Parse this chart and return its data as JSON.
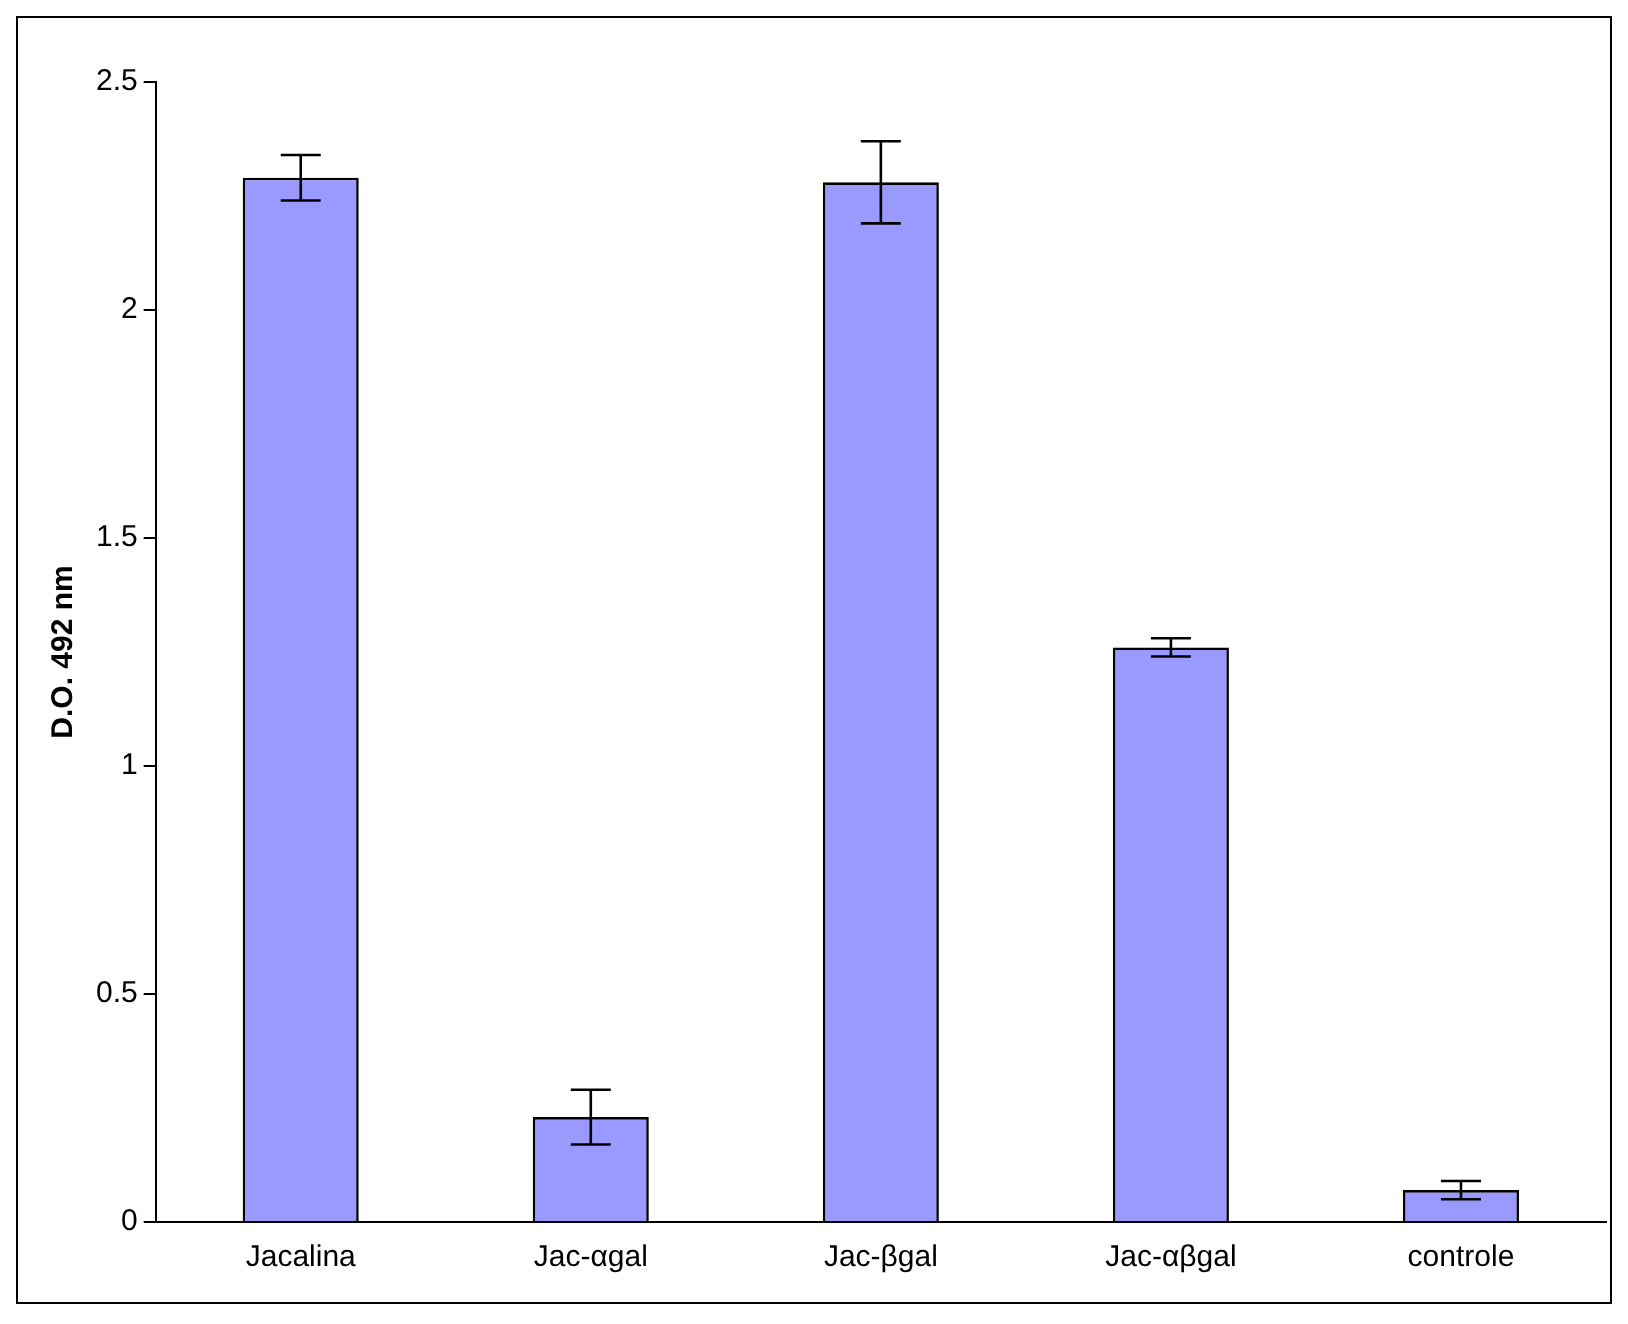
{
  "chart_data": {
    "type": "bar",
    "ylabel": "D.O. 492 nm",
    "categories": [
      "Jacalina",
      "Jac-αgal",
      "Jac-βgal",
      "Jac-αβgal",
      "controle"
    ],
    "values": [
      2.29,
      0.23,
      2.28,
      1.26,
      0.07
    ],
    "errors": [
      0.05,
      0.06,
      0.09,
      0.02,
      0.02
    ],
    "color": "#9999ff",
    "ylim": [
      0,
      2.5
    ],
    "yticks": [
      0,
      0.5,
      1,
      1.5,
      2,
      2.5
    ],
    "grid": false,
    "legend": false
  }
}
